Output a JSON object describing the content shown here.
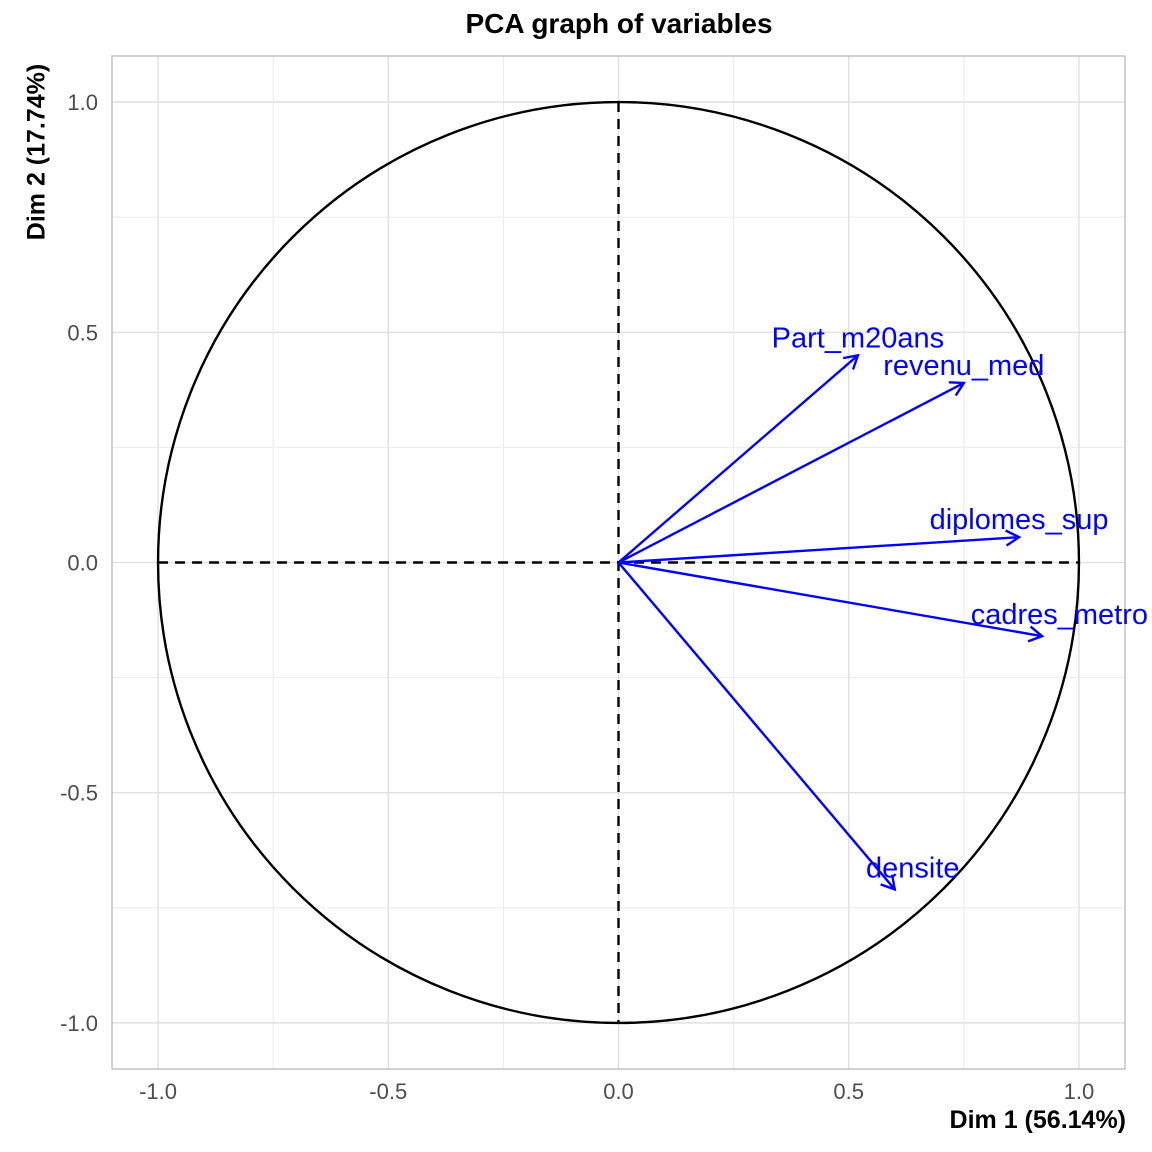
{
  "chart_data": {
    "type": "scatter",
    "subtype": "pca-correlation-circle",
    "title": "PCA graph of variables",
    "xlabel": "Dim 1 (56.14%)",
    "ylabel": "Dim 2 (17.74%)",
    "xlim": [
      -1.1,
      1.1
    ],
    "ylim": [
      -1.1,
      1.1
    ],
    "x_ticks": [
      -1.0,
      -0.5,
      0.0,
      0.5,
      1.0
    ],
    "y_ticks": [
      -1.0,
      -0.5,
      0.0,
      0.5,
      1.0
    ],
    "x_tick_labels": [
      "-1.0",
      "-0.5",
      "0.0",
      "0.5",
      "1.0"
    ],
    "y_tick_labels": [
      "-1.0",
      "-0.5",
      "0.0",
      "0.5",
      "1.0"
    ],
    "grid": true,
    "unit_circle": true,
    "series_color": "#0000ff",
    "variables": [
      {
        "name": "Part_m20ans",
        "x": 0.52,
        "y": 0.45
      },
      {
        "name": "revenu_med",
        "x": 0.75,
        "y": 0.39
      },
      {
        "name": "diplomes_sup",
        "x": 0.87,
        "y": 0.055
      },
      {
        "name": "cadres_metro",
        "x": 0.92,
        "y": -0.16
      },
      {
        "name": "densite",
        "x": 0.6,
        "y": -0.71
      }
    ]
  }
}
